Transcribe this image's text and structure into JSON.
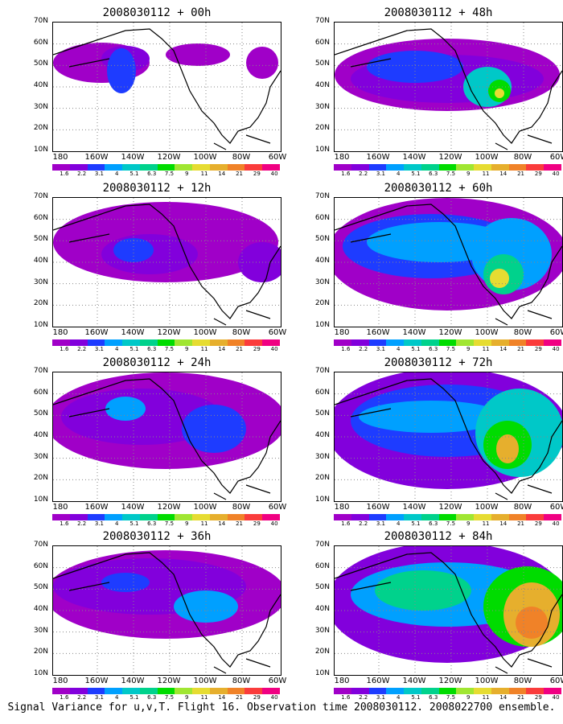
{
  "panels": [
    {
      "title": "2008030112 + 00h"
    },
    {
      "title": "2008030112 + 48h"
    },
    {
      "title": "2008030112 + 12h"
    },
    {
      "title": "2008030112 + 60h"
    },
    {
      "title": "2008030112 + 24h"
    },
    {
      "title": "2008030112 + 72h"
    },
    {
      "title": "2008030112 + 36h"
    },
    {
      "title": "2008030112 + 84h"
    }
  ],
  "axes": {
    "lat_ticks": [
      "10N",
      "20N",
      "30N",
      "40N",
      "50N",
      "60N",
      "70N"
    ],
    "lon_ticks": [
      "180",
      "160W",
      "140W",
      "120W",
      "100W",
      "80W",
      "60W"
    ]
  },
  "colorbar": {
    "levels": [
      "1.6",
      "2.2",
      "3.1",
      "4",
      "5.1",
      "6.3",
      "7.5",
      "9",
      "11",
      "14",
      "21",
      "29",
      "40"
    ],
    "colors": [
      "#a000c8",
      "#8200dc",
      "#1e3cff",
      "#00a0ff",
      "#00c8c8",
      "#00d28c",
      "#00dc00",
      "#a0e632",
      "#e6dc32",
      "#e6af2d",
      "#f08228",
      "#fa3c3c",
      "#f00082"
    ]
  },
  "footer": "Signal Variance for u,v,T. Flight 16. Observation time 2008030112. 2008022700 ensemble.",
  "chart_data": {
    "type": "heatmap",
    "variable": "Signal Variance for u,v,T",
    "xlabel": "",
    "ylabel": "",
    "x_range_deg": [
      180,
      60
    ],
    "y_range_deg": [
      10,
      70
    ],
    "grid": "dotted",
    "legend": "horizontal colorbar below each map",
    "forecast_hours": [
      0,
      48,
      12,
      60,
      24,
      72,
      36,
      84
    ]
  }
}
